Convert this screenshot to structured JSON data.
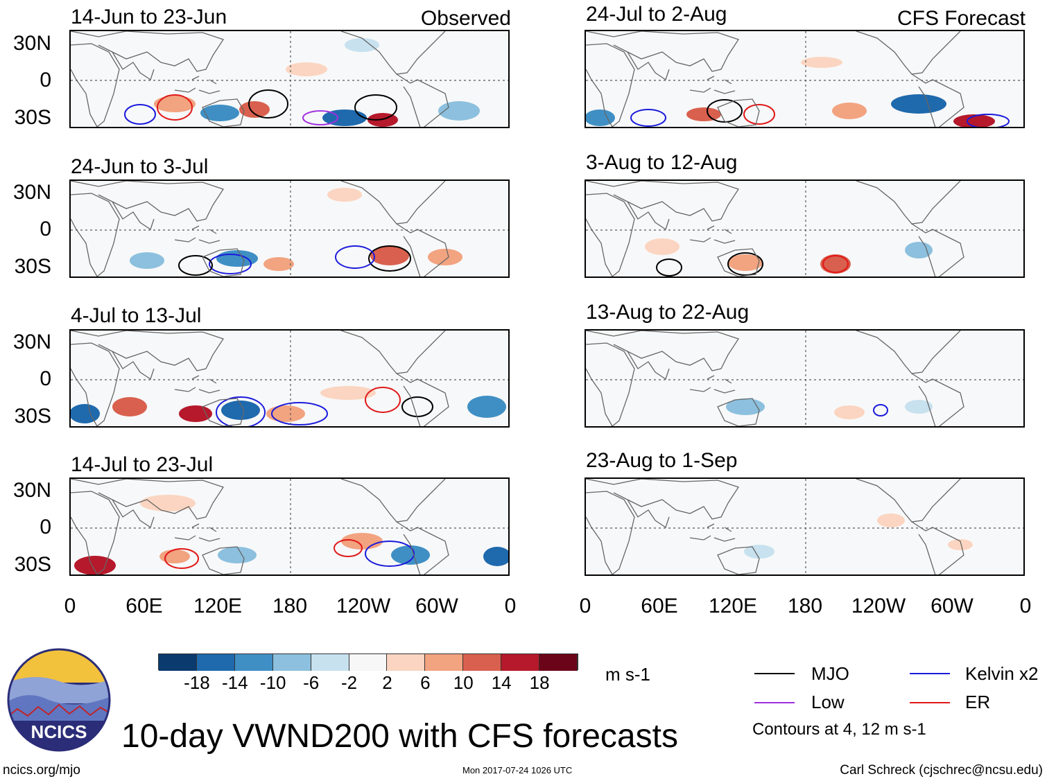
{
  "title": "10-day VWND200 with CFS forecasts",
  "left_column_label": "Observed",
  "right_column_label": "CFS Forecast",
  "panels_left": [
    {
      "period": "14-Jun to 23-Jun"
    },
    {
      "period": "24-Jun to 3-Jul"
    },
    {
      "period": "4-Jul to 13-Jul"
    },
    {
      "period": "14-Jul to 23-Jul"
    }
  ],
  "panels_right": [
    {
      "period": "24-Jul to 2-Aug"
    },
    {
      "period": "3-Aug to 12-Aug"
    },
    {
      "period": "13-Aug to 22-Aug"
    },
    {
      "period": "23-Aug to 1-Sep"
    }
  ],
  "lat_labels": [
    "30N",
    "0",
    "30S"
  ],
  "lon_labels": [
    "0",
    "60E",
    "120E",
    "180",
    "120W",
    "60W",
    "0"
  ],
  "colorbar": {
    "colors": [
      "#0b3a6e",
      "#1f69ad",
      "#3f8fc4",
      "#8cc0de",
      "#c7e1ef",
      "#f7f7f7",
      "#fbd5c1",
      "#f2a380",
      "#d9604e",
      "#b5192b",
      "#6b0418"
    ],
    "tick_labels": [
      "-18",
      "-14",
      "-10",
      "-6",
      "-2",
      "2",
      "6",
      "10",
      "14",
      "18"
    ],
    "units": "m s-1"
  },
  "legend": {
    "items": [
      {
        "label": "MJO",
        "color": "#000000"
      },
      {
        "label": "Kelvin x2",
        "color": "#1a1adc"
      },
      {
        "label": "Low",
        "color": "#a030e0"
      },
      {
        "label": "ER",
        "color": "#e01818"
      }
    ],
    "note": "Contours at 4, 12 m s-1"
  },
  "logo_text": "NCICS",
  "footer": {
    "website": "ncics.org/mjo",
    "timestamp": "Mon 2017-07-24 1026 UTC",
    "author": "Carl Schreck (cjschrec@ncsu.edu)"
  }
}
